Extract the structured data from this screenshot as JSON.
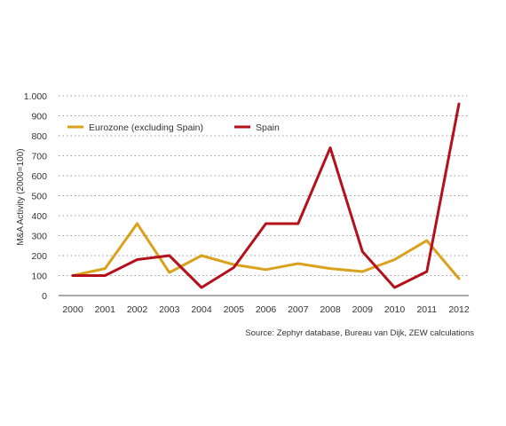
{
  "chart_data": {
    "type": "line",
    "title": "",
    "xlabel": "",
    "ylabel": "M&A Activity (2000=100)",
    "categories": [
      "2000",
      "2001",
      "2002",
      "2003",
      "2004",
      "2005",
      "2006",
      "2007",
      "2008",
      "2009",
      "2010",
      "2011",
      "2012"
    ],
    "ylim": [
      0,
      1000
    ],
    "yticks": [
      0,
      100,
      200,
      300,
      400,
      500,
      600,
      700,
      800,
      900,
      1000
    ],
    "ytick_labels": [
      "0",
      "100",
      "200",
      "300",
      "400",
      "500",
      "600",
      "700",
      "800",
      "900",
      "1.000"
    ],
    "grid": true,
    "legend_position": "top-left",
    "series": [
      {
        "name": "Eurozone (excluding Spain)",
        "color": "#d9a11c",
        "values": [
          100,
          135,
          360,
          115,
          200,
          155,
          130,
          160,
          135,
          120,
          180,
          275,
          85
        ]
      },
      {
        "name": "Spain",
        "color": "#b3121c",
        "values": [
          100,
          100,
          180,
          200,
          40,
          140,
          360,
          360,
          740,
          220,
          40,
          120,
          960
        ]
      }
    ],
    "source": "Source: Zephyr database, Bureau van Dijk, ZEW calculations"
  }
}
